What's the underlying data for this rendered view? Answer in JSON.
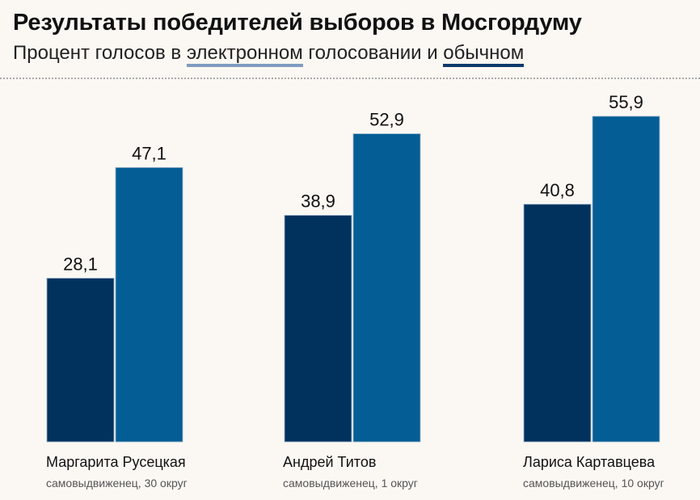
{
  "header": {
    "title": "Результаты победителей выборов в Мосгордуму",
    "subtitle_prefix": "Процент голосов в ",
    "subtitle_electronic": "электронном",
    "subtitle_middle": " голосовании и ",
    "subtitle_regular": "обычном"
  },
  "colors": {
    "electronic_legend": "#7f9cc0",
    "regular_legend": "#0e3a6b",
    "bar_dark": "#01325e",
    "bar_bright": "#045e95"
  },
  "candidates": [
    {
      "name": "Маргарита Русецкая",
      "note": "самовыдвиженец, 30 округ"
    },
    {
      "name": "Андрей Титов",
      "note": "самовыдвиженец, 1 округ"
    },
    {
      "name": "Лариса Картавцева",
      "note": "самовыдвиженец, 10 округ"
    }
  ],
  "chart_data": {
    "type": "bar",
    "title": "Результаты победителей выборов в Мосгордуму",
    "subtitle": "Процент голосов в электронном голосовании и обычном",
    "categories": [
      "Маргарита Русецкая",
      "Андрей Титов",
      "Лариса Картавцева"
    ],
    "series": [
      {
        "name": "dark bars",
        "color": "#01325e",
        "values": [
          28.1,
          38.9,
          40.8
        ],
        "labels": [
          "28,1",
          "38,9",
          "40,8"
        ]
      },
      {
        "name": "bright bars",
        "color": "#045e95",
        "values": [
          47.1,
          52.9,
          55.9
        ],
        "labels": [
          "47,1",
          "52,9",
          "55,9"
        ]
      }
    ],
    "legend": [
      "электронном",
      "обычном"
    ],
    "xlabel": "",
    "ylabel": "",
    "ylim": [
      0,
      60
    ],
    "grid": false,
    "axes_visible": false
  }
}
